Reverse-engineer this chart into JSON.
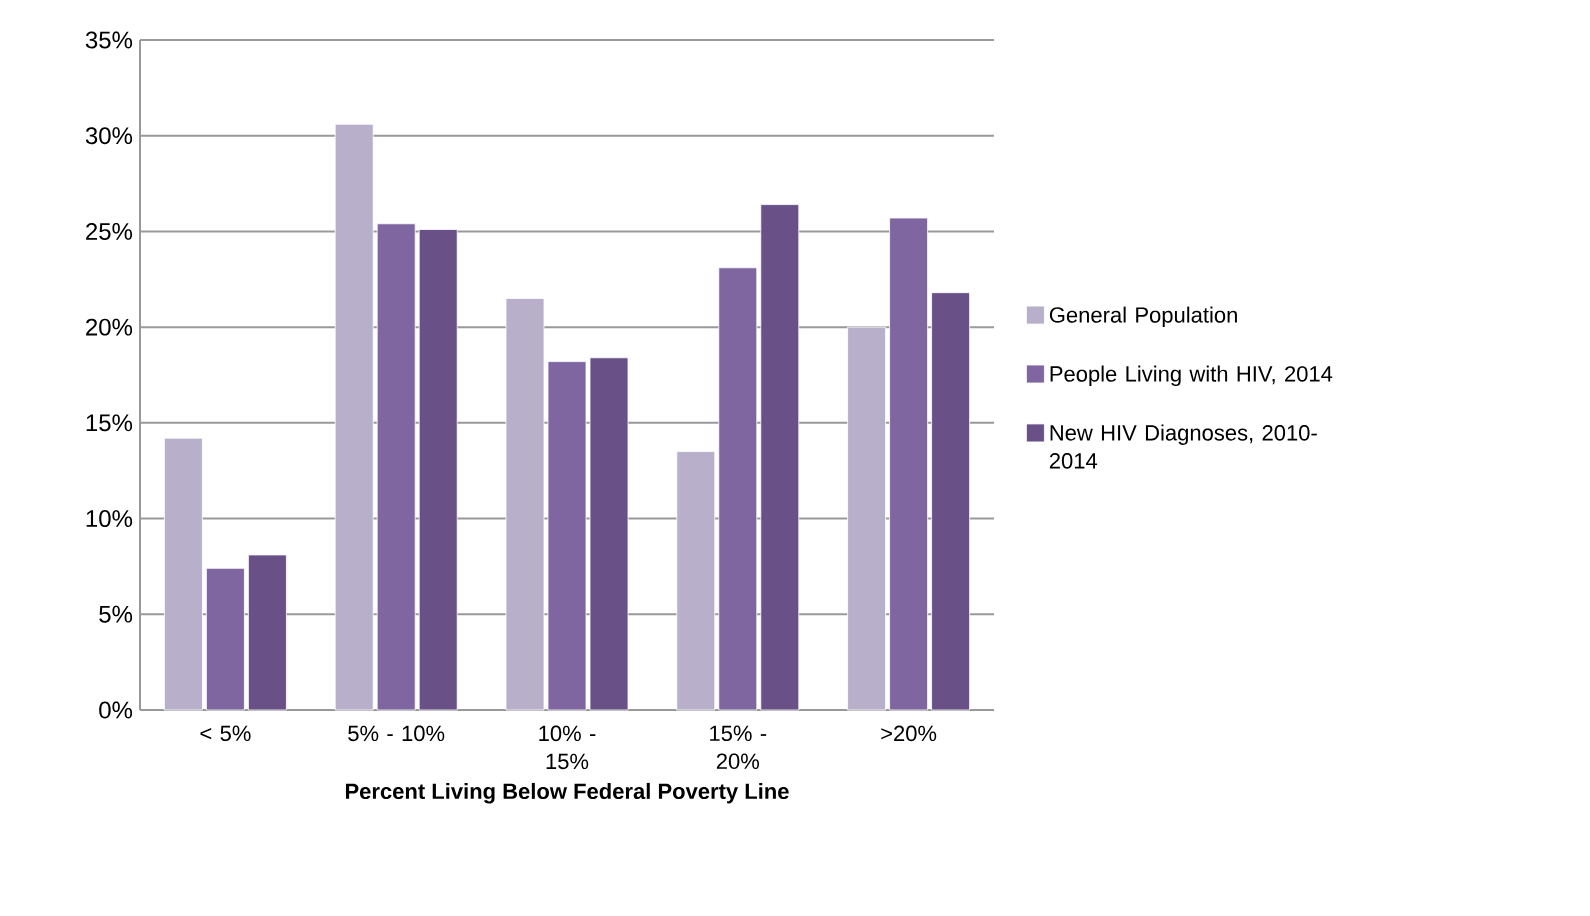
{
  "chart_data": {
    "type": "bar",
    "xlabel": "**Percent Living Below Federal Poverty Line**",
    "categories": [
      "< 5%",
      "5% - 10%",
      "10% - 15%",
      "15% - 20%",
      ">20%"
    ],
    "series": [
      {
        "name": "General Population",
        "color": "#b8b0cb",
        "values": [
          14.2,
          30.6,
          21.5,
          13.5,
          20.0
        ]
      },
      {
        "name": "People Living with HIV, 2014",
        "color": "#8066a0",
        "values": [
          7.4,
          25.4,
          18.2,
          23.1,
          25.7
        ]
      },
      {
        "name": "New HIV Diagnoses, 2010-2014",
        "color": "#695086",
        "values": [
          8.1,
          25.1,
          18.4,
          26.4,
          21.8
        ]
      }
    ],
    "ylim": [
      0,
      35
    ],
    "yticks": [
      {
        "value": 0,
        "label": "0%"
      },
      {
        "value": 5,
        "label": "5%"
      },
      {
        "value": 10,
        "label": "10%"
      },
      {
        "value": 15,
        "label": "15%"
      },
      {
        "value": 20,
        "label": "20%"
      },
      {
        "value": 25,
        "label": "25%"
      },
      {
        "value": 30,
        "label": "30%"
      },
      {
        "value": 35,
        "label": "35%"
      }
    ],
    "grid": "y",
    "legend": "right"
  }
}
